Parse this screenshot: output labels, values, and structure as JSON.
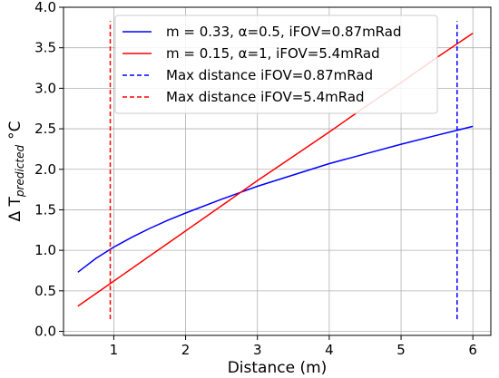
{
  "chart_data": {
    "type": "line",
    "title": "",
    "xlabel": "Distance (m)",
    "ylabel": {
      "prefix": "Δ T",
      "subscript": "predicted",
      "suffix": "°C"
    },
    "xlim": [
      0.3,
      6.25
    ],
    "ylim": [
      -0.05,
      4.0
    ],
    "xticks": [
      1,
      2,
      3,
      4,
      5,
      6
    ],
    "yticks": [
      0.0,
      0.5,
      1.0,
      1.5,
      2.0,
      2.5,
      3.0,
      3.5,
      4.0
    ],
    "grid": true,
    "legend_position": "upper-left",
    "series": [
      {
        "name": "m = 0.33, α=0.5, iFOV=0.87mRad",
        "color": "#0000ff",
        "style": "solid",
        "x": [
          0.5,
          0.75,
          1.0,
          1.25,
          1.5,
          1.75,
          2.0,
          2.5,
          3.0,
          3.5,
          4.0,
          4.5,
          5.0,
          5.5,
          6.0
        ],
        "y": [
          0.73,
          0.9,
          1.04,
          1.16,
          1.27,
          1.37,
          1.46,
          1.63,
          1.79,
          1.93,
          2.07,
          2.19,
          2.31,
          2.42,
          2.53
        ]
      },
      {
        "name": "m = 0.15, α=1, iFOV=5.4mRad",
        "color": "#ff0000",
        "style": "solid",
        "x": [
          0.5,
          1.0,
          1.5,
          2.0,
          2.5,
          3.0,
          3.5,
          4.0,
          4.5,
          5.0,
          5.5,
          6.0
        ],
        "y": [
          0.31,
          0.62,
          0.93,
          1.24,
          1.55,
          1.86,
          2.16,
          2.46,
          2.77,
          3.07,
          3.38,
          3.68
        ]
      },
      {
        "name": "Max distance iFOV=0.87mRad",
        "color": "#0000ff",
        "style": "dashed",
        "x": [
          5.78,
          5.78
        ],
        "y": [
          0.15,
          3.83
        ]
      },
      {
        "name": "Max distance iFOV=5.4mRad",
        "color": "#ff0000",
        "style": "dashed",
        "x": [
          0.95,
          0.95
        ],
        "y": [
          0.15,
          3.83
        ]
      }
    ]
  }
}
